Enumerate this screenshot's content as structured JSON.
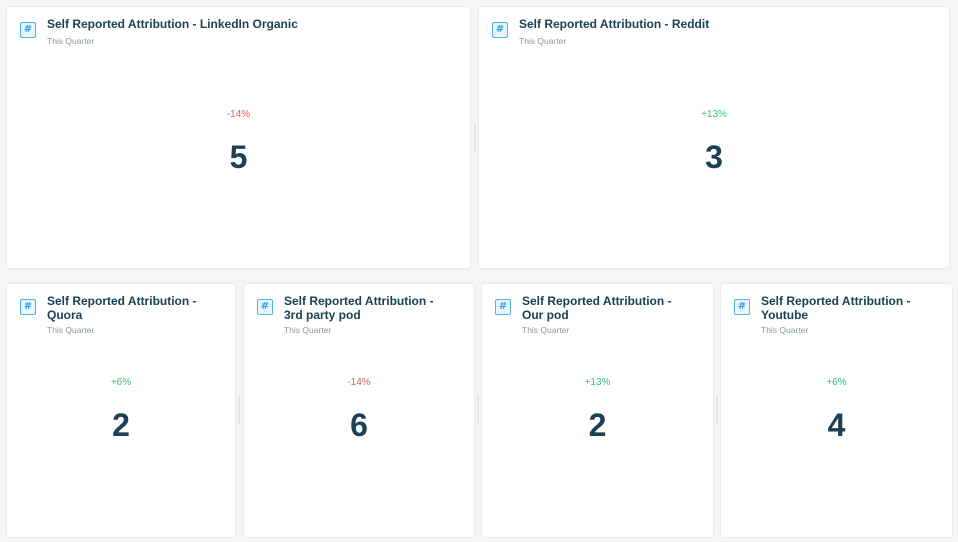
{
  "icon": "hash-icon",
  "icon_glyph": "#",
  "colors": {
    "title": "#1c4154",
    "positive": "#36c275",
    "negative": "#e35f53",
    "icon": "#4fb4ea"
  },
  "cards": [
    {
      "title_line1": "Self Reported Attribution - LinkedIn Organic",
      "title_line2": "",
      "period": "This Quarter",
      "delta": "-14%",
      "trend": "negative",
      "value": "5"
    },
    {
      "title_line1": "Self Reported Attribution - Reddit",
      "title_line2": "",
      "period": "This Quarter",
      "delta": "+13%",
      "trend": "positive",
      "value": "3"
    },
    {
      "title_line1": "Self Reported Attribution -",
      "title_line2": "Quora",
      "period": "This Quarter",
      "delta": "+6%",
      "trend": "positive",
      "value": "2"
    },
    {
      "title_line1": "Self Reported Attribution -",
      "title_line2": "3rd party pod",
      "period": "This Quarter",
      "delta": "-14%",
      "trend": "negative",
      "value": "6"
    },
    {
      "title_line1": "Self Reported Attribution -",
      "title_line2": "Our pod",
      "period": "This Quarter",
      "delta": "+13%",
      "trend": "positive",
      "value": "2"
    },
    {
      "title_line1": "Self Reported Attribution -",
      "title_line2": "Youtube",
      "period": "This Quarter",
      "delta": "+6%",
      "trend": "positive",
      "value": "4"
    }
  ]
}
